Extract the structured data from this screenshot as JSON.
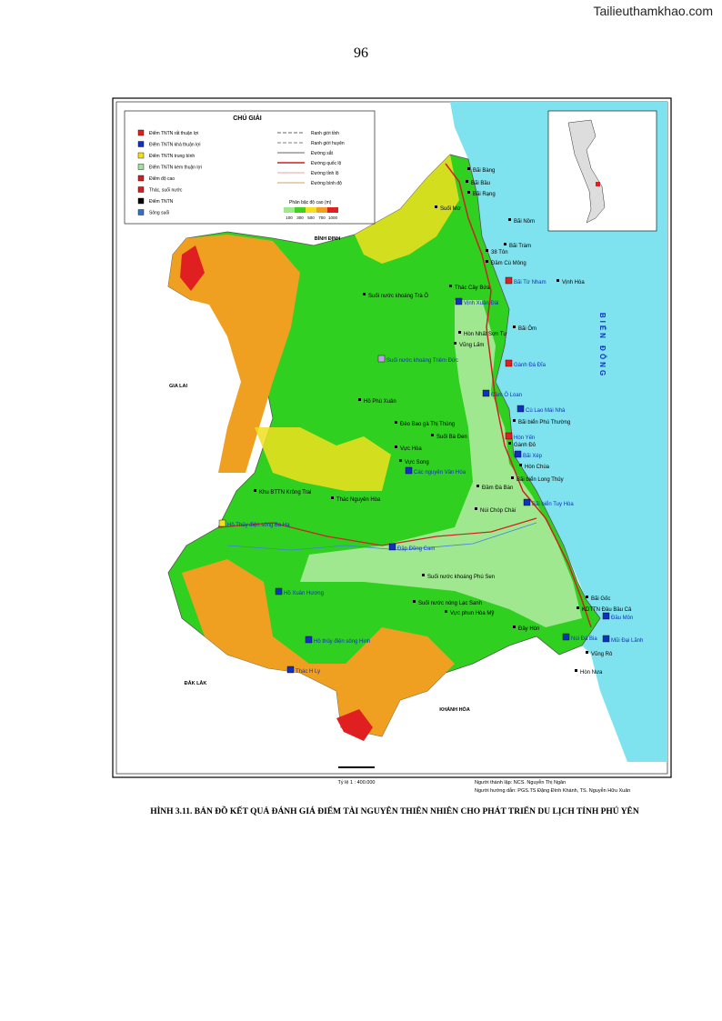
{
  "header": {
    "site": "Tailieuthamkhao.com",
    "page_number": "96"
  },
  "legend": {
    "title": "CHÚ GIẢI",
    "left_items": [
      {
        "label": "Điểm TNTN rất thuận lợi",
        "color": "#e02020"
      },
      {
        "label": "Điểm TNTN khá thuận lợi",
        "color": "#1030c0"
      },
      {
        "label": "Điểm TNTN trung bình",
        "color": "#f0e020"
      },
      {
        "label": "Điểm TNTN kém thuận lợi",
        "color": "#a0e0a0"
      },
      {
        "label": "Điểm độ cao",
        "color": "#d02020"
      },
      {
        "label": "Thác, suối nước",
        "color": "#d02020"
      },
      {
        "label": "Điểm TNTN",
        "color": "#000000"
      },
      {
        "label": "Sông suối",
        "color": "#3070d0"
      }
    ],
    "right_items": [
      {
        "label": "Ranh giới tỉnh",
        "color": "#333333"
      },
      {
        "label": "Ranh giới huyện",
        "color": "#555555"
      },
      {
        "label": "Đường sắt",
        "color": "#333333"
      },
      {
        "label": "Đường quốc lộ",
        "color": "#d02020"
      },
      {
        "label": "Đường tỉnh lộ",
        "color": "#e08080"
      },
      {
        "label": "Đường bình độ",
        "color": "#c08040"
      }
    ],
    "elevation_title": "Phân bậc độ cao (m)",
    "elevation_classes": [
      {
        "label": "100",
        "color": "#a0e890"
      },
      {
        "label": "300",
        "color": "#40d020"
      },
      {
        "label": "500",
        "color": "#f0e020"
      },
      {
        "label": "700",
        "color": "#f0a020"
      },
      {
        "label": "1000",
        "color": "#e02020"
      }
    ]
  },
  "regions": [
    "BÌNH ĐỊNH",
    "GIA LAI",
    "ĐẮK LẮK",
    "KHÁNH HÒA",
    "BIỂN ĐÔNG"
  ],
  "places": [
    {
      "label": "Bãi Bàng"
    },
    {
      "label": "Bãi Bầu"
    },
    {
      "label": "Bãi Rạng"
    },
    {
      "label": "Suối Mơ"
    },
    {
      "label": "Bãi Nồm"
    },
    {
      "label": "Bãi Tràm"
    },
    {
      "label": "38 Tôn"
    },
    {
      "label": "Đầm Cù Mông"
    },
    {
      "label": "Bãi Từ Nham",
      "color": "#e02020"
    },
    {
      "label": "Vịnh Hòa"
    },
    {
      "label": "Suối nước khoáng Trà Ô"
    },
    {
      "label": "Thác Cây Bứa"
    },
    {
      "label": "Vịnh Xuân Đài",
      "color": "#1030c0"
    },
    {
      "label": "Bãi Ôm"
    },
    {
      "label": "Hòn Nhất Sơn Tự"
    },
    {
      "label": "Vũng Lấm"
    },
    {
      "label": "Suối nước khoáng Triêm Đức",
      "color": "#c0a0e0"
    },
    {
      "label": "Gành Đá Đĩa",
      "color": "#e02020"
    },
    {
      "label": "Đầm Ô Loan",
      "color": "#1030c0"
    },
    {
      "label": "Hồ Phú Xuân"
    },
    {
      "label": "Cù Lao Mái Nhà",
      "color": "#1030c0"
    },
    {
      "label": "Bãi biển Phú Thường"
    },
    {
      "label": "Đèo Bao gà Thị Thùng"
    },
    {
      "label": "Suối Bà Đen"
    },
    {
      "label": "Hòn Yến",
      "color": "#e02020"
    },
    {
      "label": "Gành Đỏ"
    },
    {
      "label": "Bãi Xép",
      "color": "#1030c0"
    },
    {
      "label": "Vực Hòa"
    },
    {
      "label": "Hòn Chùa"
    },
    {
      "label": "Vực Song"
    },
    {
      "label": "Các nguyên Vân Hòa",
      "color": "#1030c0"
    },
    {
      "label": "Bãi biển Long Thủy"
    },
    {
      "label": "Khu BTTN Krông Trai"
    },
    {
      "label": "Thác Nguyên Hòa"
    },
    {
      "label": "Đầm Đà Bàn"
    },
    {
      "label": "Bãi biển Tuy Hòa",
      "color": "#1030c0"
    },
    {
      "label": "Núi Chóp Chài"
    },
    {
      "label": "Hồ Thủy điện sông Ba Hạ",
      "color": "#f0e020"
    },
    {
      "label": "Đập Đồng Cam",
      "color": "#1030c0"
    },
    {
      "label": "Suối nước khoáng Phú Sen"
    },
    {
      "label": "Hồ Xuân Hương",
      "color": "#1030c0"
    },
    {
      "label": "Bãi Gốc"
    },
    {
      "label": "KDTTN Đầu Bầu Cả"
    },
    {
      "label": "Đầu Môn",
      "color": "#1030c0"
    },
    {
      "label": "Mũi Đại Lãnh",
      "color": "#1030c0"
    },
    {
      "label": "Núi Đá Bia",
      "color": "#1030c0"
    },
    {
      "label": "Vũng Rô"
    },
    {
      "label": "Hòn Nưa"
    },
    {
      "label": "Hồ thủy điện sông Hinh",
      "color": "#1030c0"
    },
    {
      "label": "Thác H Ly",
      "color": "#1030c0"
    },
    {
      "label": "Vực phun Hòa Mỹ"
    },
    {
      "label": "Suối nước nóng Lạc Sanh"
    },
    {
      "label": "Đây Hòn"
    }
  ],
  "scale": "Tỷ lệ 1 : 400.000",
  "credits": [
    "Người thành lập: NCS. Nguyễn Thị Ngân",
    "Người hướng dẫn: PGS.TS Đặng Đình Khánh, TS. Nguyễn Hữu Xuân"
  ],
  "caption": "HÌNH 3.11. BẢN ĐỒ KẾT QUẢ ĐÁNH GIÁ ĐIỂM TÀI NGUYÊN THIÊN NHIÊN CHO PHÁT TRIỂN DU LỊCH TỈNH PHÚ YÊN"
}
